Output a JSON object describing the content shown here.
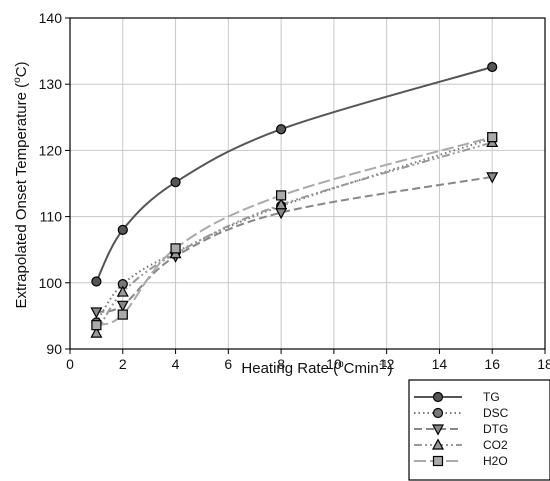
{
  "chart_data": {
    "type": "line",
    "title": "",
    "ylabel_main": "Extrapolated Onset Temperature (",
    "ylabel_sup": "o",
    "ylabel_tail": "C)",
    "xlabel_main": "Heating Rate (",
    "xlabel_sup1": "o",
    "xlabel_mid": "Cmin",
    "xlabel_sup2": "-1",
    "xlabel_tail": ")",
    "xlim": [
      0,
      18
    ],
    "ylim": [
      90,
      140
    ],
    "xticks": [
      "0",
      "2",
      "4",
      "6",
      "8",
      "10",
      "12",
      "14",
      "16",
      "18"
    ],
    "yticks": [
      "90",
      "100",
      "110",
      "120",
      "130",
      "140"
    ],
    "grid": true,
    "legend_position": "bottom-right",
    "x": [
      1,
      2,
      4,
      8,
      16
    ],
    "series": [
      {
        "name": "TG",
        "values": [
          100.2,
          108.0,
          115.2,
          123.2,
          132.6
        ],
        "marker": "circle",
        "color": "#555555",
        "dash": ""
      },
      {
        "name": "DSC",
        "values": [
          94.0,
          99.8,
          104.6,
          111.6,
          121.8
        ],
        "marker": "circle",
        "color": "#777777",
        "dash": "1.5,3"
      },
      {
        "name": "DTG",
        "values": [
          95.6,
          96.6,
          104.0,
          110.6,
          116.0
        ],
        "marker": "triangle-down",
        "color": "#888888",
        "dash": "8,4"
      },
      {
        "name": "CO2",
        "values": [
          92.4,
          98.6,
          104.4,
          111.8,
          121.2
        ],
        "marker": "triangle-up",
        "color": "#999999",
        "dash": "8,3,2,3,2,3"
      },
      {
        "name": "H2O",
        "values": [
          93.6,
          95.2,
          105.2,
          113.2,
          122.0
        ],
        "marker": "square",
        "color": "#aaaaaa",
        "dash": "12,4"
      }
    ]
  }
}
